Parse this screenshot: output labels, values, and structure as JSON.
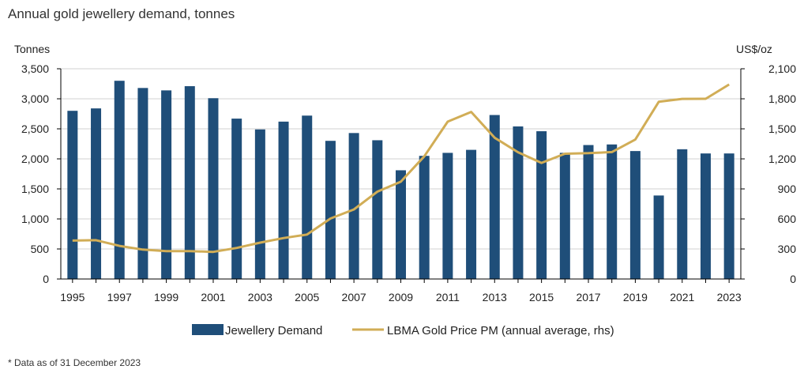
{
  "chart_data": {
    "type": "bar+line",
    "title": "Annual gold jewellery demand, tonnes",
    "ylabel_left": "Tonnes",
    "ylabel_right": "US$/oz",
    "ylim_left": [
      0,
      3500
    ],
    "ylim_right": [
      0,
      2100
    ],
    "yticks_left": [
      "0",
      "500",
      "1,000",
      "1,500",
      "2,000",
      "2,500",
      "3,000",
      "3,500"
    ],
    "yticks_right": [
      "0",
      "300",
      "600",
      "900",
      "1,200",
      "1,500",
      "1,800",
      "2,100"
    ],
    "categories": [
      1995,
      1996,
      1997,
      1998,
      1999,
      2000,
      2001,
      2002,
      2003,
      2004,
      2005,
      2006,
      2007,
      2008,
      2009,
      2010,
      2011,
      2012,
      2013,
      2014,
      2015,
      2016,
      2017,
      2018,
      2019,
      2020,
      2021,
      2022,
      2023
    ],
    "xtick_labels": [
      "1995",
      "1997",
      "1999",
      "2001",
      "2003",
      "2005",
      "2007",
      "2009",
      "2011",
      "2013",
      "2015",
      "2017",
      "2019",
      "2021",
      "2023"
    ],
    "series": [
      {
        "name": "Jewellery Demand",
        "type": "bar",
        "axis": "left",
        "color": "#1f4e79",
        "values": [
          2800,
          2840,
          3300,
          3180,
          3140,
          3210,
          3010,
          2670,
          2490,
          2620,
          2720,
          2300,
          2430,
          2310,
          1810,
          2050,
          2100,
          2150,
          2730,
          2540,
          2460,
          2100,
          2230,
          2240,
          2130,
          1390,
          2160,
          2090,
          2090
        ]
      },
      {
        "name": "LBMA Gold Price PM (annual average, rhs)",
        "type": "line",
        "axis": "right",
        "color": "#d1ad56",
        "values": [
          384,
          388,
          331,
          294,
          279,
          279,
          271,
          310,
          363,
          409,
          444,
          604,
          695,
          872,
          972,
          1225,
          1572,
          1669,
          1411,
          1266,
          1160,
          1251,
          1257,
          1268,
          1393,
          1770,
          1799,
          1800,
          1943
        ]
      }
    ],
    "legend_position": "bottom-center",
    "footnote": "* Data as of 31 December 2023"
  }
}
